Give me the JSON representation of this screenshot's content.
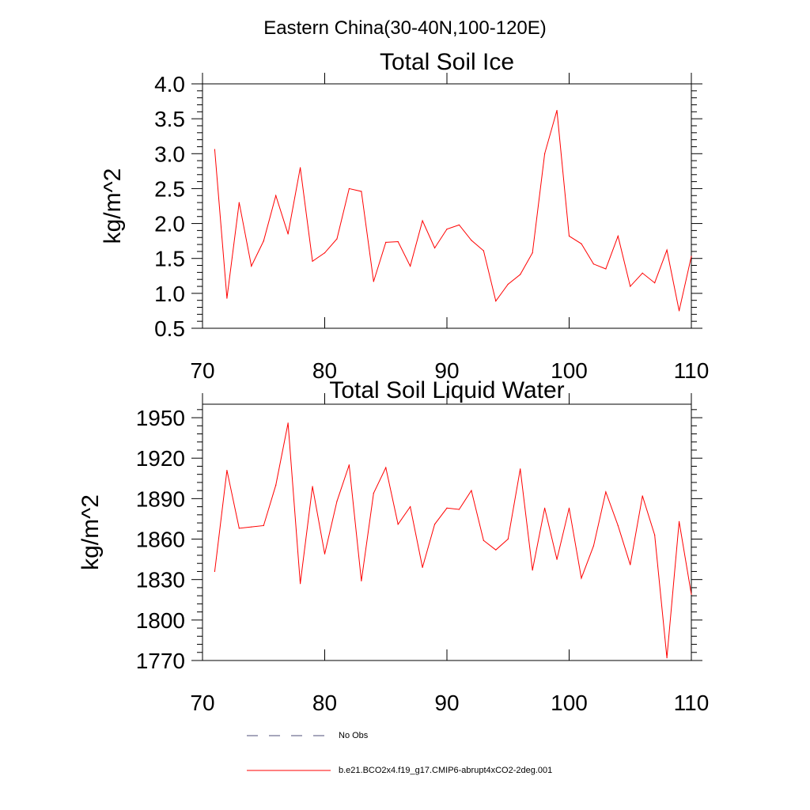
{
  "figure": {
    "suptitle": "Eastern China(30-40N,100-120E)"
  },
  "legend": {
    "items": [
      {
        "label": "No Obs",
        "color": "#4d4d7a",
        "dash": "dashed"
      },
      {
        "label": "b.e21.BCO2x4.f19_g17.CMIP6-abrupt4xCO2-2deg.001",
        "color": "#ff0000",
        "dash": "solid"
      }
    ]
  },
  "chart_data": [
    {
      "type": "line",
      "title": "Total Soil Ice",
      "ylabel": "kg/m^2",
      "xlabel": "",
      "xlim": [
        70,
        110
      ],
      "ylim": [
        0.5,
        4.0
      ],
      "xticks": [
        70,
        80,
        90,
        100,
        110
      ],
      "yticks": [
        "0.5",
        "1.0",
        "1.5",
        "2.0",
        "2.5",
        "3.0",
        "3.5",
        "4.0"
      ],
      "grid": false,
      "series": [
        {
          "name": "b.e21.BCO2x4.f19_g17.CMIP6-abrupt4xCO2-2deg.001",
          "color": "#ff0000",
          "x": [
            71,
            72,
            73,
            74,
            75,
            76,
            77,
            78,
            79,
            80,
            81,
            82,
            83,
            84,
            85,
            86,
            87,
            88,
            89,
            90,
            91,
            92,
            93,
            94,
            95,
            96,
            97,
            98,
            99,
            100,
            101,
            102,
            103,
            104,
            105,
            106,
            107,
            108,
            109,
            110
          ],
          "values": [
            3.06,
            0.93,
            2.3,
            1.39,
            1.75,
            2.4,
            1.85,
            2.8,
            1.46,
            1.58,
            1.78,
            2.5,
            2.46,
            1.17,
            1.73,
            1.74,
            1.39,
            2.04,
            1.65,
            1.92,
            1.98,
            1.76,
            1.61,
            0.89,
            1.13,
            1.27,
            1.58,
            3.0,
            3.62,
            1.82,
            1.71,
            1.42,
            1.35,
            1.82,
            1.1,
            1.29,
            1.15,
            1.62,
            0.75,
            1.53
          ]
        }
      ]
    },
    {
      "type": "line",
      "title": "Total Soil Liquid Water",
      "ylabel": "kg/m^2",
      "xlabel": "",
      "xlim": [
        70,
        110
      ],
      "ylim": [
        1770,
        1960
      ],
      "xticks": [
        70,
        80,
        90,
        100,
        110
      ],
      "yticks": [
        "1770",
        "1800",
        "1830",
        "1860",
        "1890",
        "1920",
        "1950"
      ],
      "grid": false,
      "series": [
        {
          "name": "b.e21.BCO2x4.f19_g17.CMIP6-abrupt4xCO2-2deg.001",
          "color": "#ff0000",
          "x": [
            71,
            72,
            73,
            74,
            75,
            76,
            77,
            78,
            79,
            80,
            81,
            82,
            83,
            84,
            85,
            86,
            87,
            88,
            89,
            90,
            91,
            92,
            93,
            94,
            95,
            96,
            97,
            98,
            99,
            100,
            101,
            102,
            103,
            104,
            105,
            106,
            107,
            108,
            109,
            110
          ],
          "values": [
            1836,
            1911,
            1868,
            1869,
            1870,
            1900,
            1946,
            1827,
            1899,
            1849,
            1888,
            1915,
            1829,
            1894,
            1913,
            1871,
            1884,
            1839,
            1871,
            1883,
            1882,
            1896,
            1859,
            1852,
            1860,
            1912,
            1837,
            1883,
            1845,
            1883,
            1831,
            1855,
            1895,
            1870,
            1841,
            1892,
            1863,
            1772,
            1873,
            1819
          ]
        }
      ]
    }
  ]
}
